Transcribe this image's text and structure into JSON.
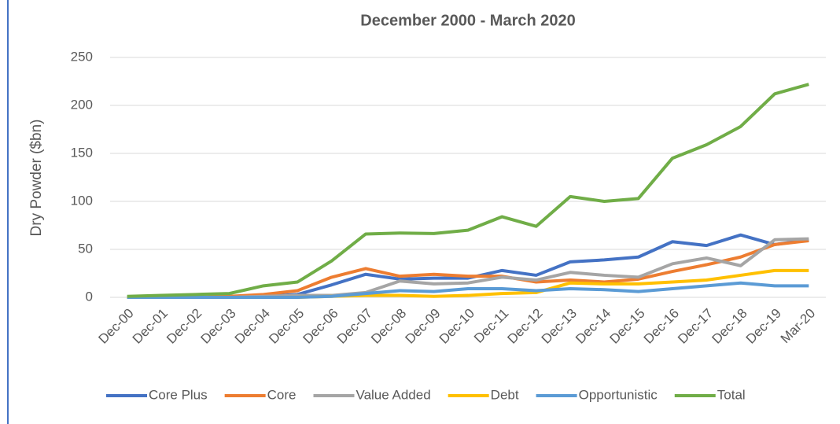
{
  "chart_data": {
    "type": "line",
    "title": "December 2000 - March 2020",
    "y_label": "Dry Powder ($bn)",
    "categories": [
      "Dec-00",
      "Dec-01",
      "Dec-02",
      "Dec-03",
      "Dec-04",
      "Dec-05",
      "Dec-06",
      "Dec-07",
      "Dec-08",
      "Dec-09",
      "Dec-10",
      "Dec-11",
      "Dec-12",
      "Dec-13",
      "Dec-14",
      "Dec-15",
      "Dec-16",
      "Dec-17",
      "Dec-18",
      "Dec-19",
      "Mar-20"
    ],
    "series": [
      {
        "name": "Core Plus",
        "color": "#4472c4",
        "values": [
          0,
          0,
          0,
          0,
          1,
          3,
          13,
          24,
          19,
          20,
          20,
          28,
          23,
          37,
          39,
          42,
          58,
          54,
          65,
          55,
          60
        ]
      },
      {
        "name": "Core",
        "color": "#ed7d31",
        "values": [
          0,
          0,
          0,
          1,
          3,
          7,
          21,
          30,
          22,
          24,
          22,
          22,
          16,
          18,
          16,
          19,
          27,
          34,
          42,
          55,
          59
        ]
      },
      {
        "name": "Value Added",
        "color": "#a5a5a5",
        "values": [
          0,
          0,
          0,
          0,
          1,
          2,
          2,
          5,
          17,
          14,
          15,
          21,
          18,
          26,
          23,
          21,
          35,
          41,
          33,
          60,
          61
        ]
      },
      {
        "name": "Debt",
        "color": "#ffc000",
        "values": [
          0,
          0,
          0,
          0,
          0,
          0,
          1,
          2,
          2,
          1,
          2,
          4,
          5,
          15,
          14,
          14,
          16,
          18,
          23,
          28,
          28
        ]
      },
      {
        "name": "Opportunistic",
        "color": "#5b9bd5",
        "values": [
          0,
          0,
          0,
          0,
          0,
          0,
          1,
          4,
          7,
          6,
          9,
          9,
          7,
          9,
          8,
          6,
          9,
          12,
          15,
          12,
          12
        ]
      },
      {
        "name": "Total",
        "color": "#70ad47",
        "values": [
          1,
          2,
          3,
          4,
          12,
          16,
          38,
          66,
          67,
          66.5,
          70,
          84,
          74,
          105,
          100,
          103,
          145,
          159,
          178,
          212,
          222
        ]
      }
    ],
    "ylim": [
      0,
      250
    ],
    "yticks": [
      0,
      50,
      100,
      150,
      200,
      250
    ],
    "grid": true,
    "legend": "bottom"
  }
}
